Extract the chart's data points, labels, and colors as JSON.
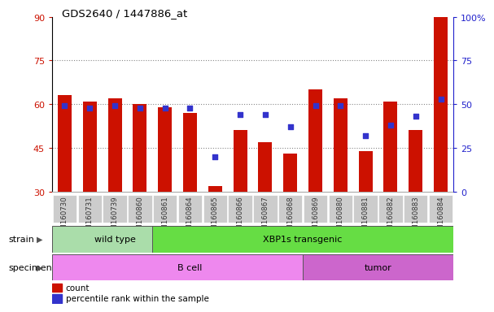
{
  "title": "GDS2640 / 1447886_at",
  "samples": [
    "GSM160730",
    "GSM160731",
    "GSM160739",
    "GSM160860",
    "GSM160861",
    "GSM160864",
    "GSM160865",
    "GSM160866",
    "GSM160867",
    "GSM160868",
    "GSM160869",
    "GSM160880",
    "GSM160881",
    "GSM160882",
    "GSM160883",
    "GSM160884"
  ],
  "counts": [
    63,
    61,
    62,
    60,
    59,
    57,
    32,
    51,
    47,
    43,
    65,
    62,
    44,
    61,
    51,
    90
  ],
  "percentiles": [
    49,
    48,
    49,
    48,
    48,
    48,
    20,
    44,
    44,
    37,
    49,
    49,
    32,
    38,
    43,
    53
  ],
  "ymin": 30,
  "ymax": 90,
  "yticks": [
    30,
    45,
    60,
    75,
    90
  ],
  "right_yticks": [
    0,
    25,
    50,
    75,
    100
  ],
  "right_ytick_labels": [
    "0",
    "25",
    "50",
    "75",
    "100%"
  ],
  "bar_color": "#cc1100",
  "dot_color": "#3333cc",
  "bar_width": 0.55,
  "strain_groups": [
    {
      "label": "wild type",
      "start": 0,
      "end": 4,
      "color": "#aaddaa"
    },
    {
      "label": "XBP1s transgenic",
      "start": 4,
      "end": 15,
      "color": "#66dd44"
    }
  ],
  "specimen_groups": [
    {
      "label": "B cell",
      "start": 0,
      "end": 10,
      "color": "#ee88ee"
    },
    {
      "label": "tumor",
      "start": 10,
      "end": 15,
      "color": "#cc66cc"
    }
  ],
  "left_tick_color": "#cc1100",
  "right_tick_color": "#2222cc",
  "grid_color": "#888888",
  "tick_bg_color": "#cccccc",
  "fig_bg": "#ffffff"
}
